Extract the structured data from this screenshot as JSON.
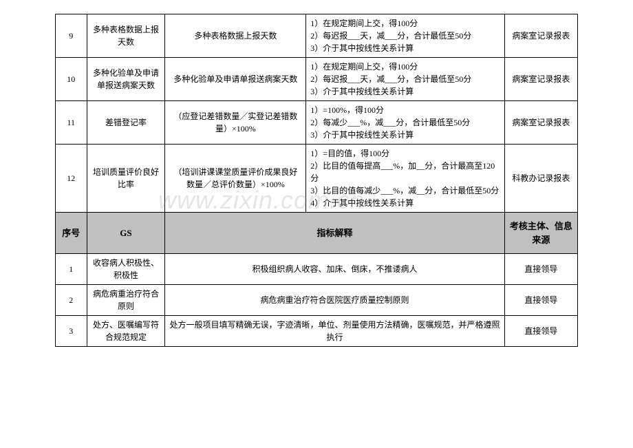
{
  "watermark": "www.zixin.com.cn",
  "topRows": [
    {
      "num": "9",
      "name": "多种表格数据上报天数",
      "formula": "多种表格数据上报天数",
      "desc": "1）在规定期间上交，得100分\n2）每迟报___天，减___分，合计最低至50分\n3）介于其中按线性关系计算",
      "source": "病案室记录报表"
    },
    {
      "num": "10",
      "name": "多种化验单及申请单报送病案天数",
      "formula": "多种化验单及申请单报送病案天数",
      "desc": "1）在规定期间上交，得100分\n2）每迟报___天，减___分，合计最低至50分\n3）介于其中按线性关系计算",
      "source": "病案室记录报表"
    },
    {
      "num": "11",
      "name": "差错登记率",
      "formula": "（应登记差错数量／实登记差错数量）×100%",
      "desc": "1）=100%，得100分\n2）每减少___%，减___分，合计最低至50分\n3）介于其中按线性关系计算",
      "source": "病案室记录报表"
    },
    {
      "num": "12",
      "name": "培训质量评价良好比率",
      "formula": "（培训讲课课堂质量评价成果良好数量／总评价数量）×100%",
      "desc": "1）=目的值，得100分\n2）比目的值每提高___%，加__分，合计最高至120分\n3）比目的值每减少___%，减__分，合计最低至50分\n4）介于其中按线性关系计算",
      "source": "科教办记录报表"
    }
  ],
  "header": {
    "num": "序号",
    "gs": "GS",
    "desc": "指标解释",
    "source": "考核主体、信息来源"
  },
  "bottomRows": [
    {
      "num": "1",
      "name": "收容病人积极性、积极性",
      "desc": "积极组织病人收容、加床、倒床，不推诿病人",
      "source": "直接领导"
    },
    {
      "num": "2",
      "name": "病危病重治疗符合原则",
      "desc": "病危病重治疗符合医院医疗质量控制原则",
      "source": "直接领导"
    },
    {
      "num": "3",
      "name": "处方、医嘱编写符合规范规定",
      "desc": "处方一般项目填写精确无误，字迹清晰，单位、剂量使用方法精确，医嘱规范，并严格遵照执行",
      "source": "直接领导"
    }
  ]
}
